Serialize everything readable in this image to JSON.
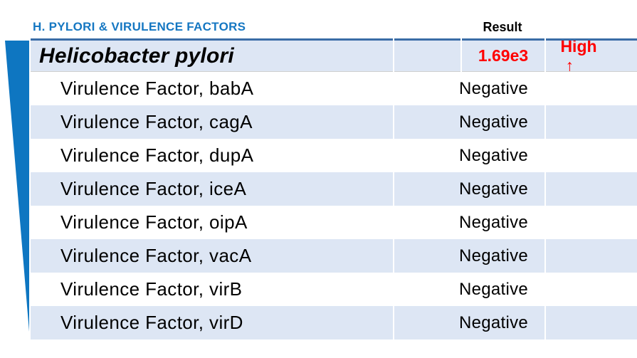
{
  "section": {
    "title": "H. PYLORI & VIRULENCE FACTORS",
    "result_header": "Result"
  },
  "table": {
    "rows": [
      {
        "name": "Helicobacter pylori",
        "result": "1.69e3",
        "flag": "High",
        "flag_arrow": "↑",
        "level": "organism"
      },
      {
        "name": "Virulence Factor, babA",
        "result": "Negative",
        "flag": "",
        "flag_arrow": "",
        "level": "sub"
      },
      {
        "name": "Virulence Factor, cagA",
        "result": "Negative",
        "flag": "",
        "flag_arrow": "",
        "level": "sub"
      },
      {
        "name": "Virulence Factor, dupA",
        "result": "Negative",
        "flag": "",
        "flag_arrow": "",
        "level": "sub"
      },
      {
        "name": "Virulence Factor, iceA",
        "result": "Negative",
        "flag": "",
        "flag_arrow": "",
        "level": "sub"
      },
      {
        "name": "Virulence Factor, oipA",
        "result": "Negative",
        "flag": "",
        "flag_arrow": "",
        "level": "sub"
      },
      {
        "name": "Virulence Factor, vacA",
        "result": "Negative",
        "flag": "",
        "flag_arrow": "",
        "level": "sub"
      },
      {
        "name": "Virulence Factor, virB",
        "result": "Negative",
        "flag": "",
        "flag_arrow": "",
        "level": "sub"
      },
      {
        "name": "Virulence Factor, virD",
        "result": "Negative",
        "flag": "",
        "flag_arrow": "",
        "level": "sub"
      }
    ]
  },
  "colors": {
    "accent_blue": "#0e76c1",
    "title_blue": "#1577c2",
    "row_blue": "#dde6f4",
    "border_blue": "#3a6ca6",
    "alert_red": "#ff0000",
    "separator_gray": "#cfcfcf"
  }
}
